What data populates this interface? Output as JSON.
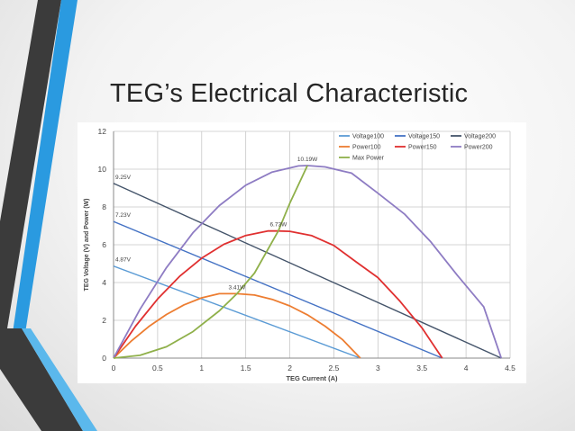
{
  "slide": {
    "title": "TEG’s Electrical Characteristic",
    "accent_colors": {
      "dark_band": "#3b3b3b",
      "blue_band": "#2a9ae0",
      "light_band": "#5bb8ec"
    }
  },
  "chart_data": {
    "type": "line",
    "title": "",
    "xlabel": "TEG Current (A)",
    "ylabel": "TEG Voltage (V) and Power (W)",
    "xlim": [
      0,
      4.5
    ],
    "ylim": [
      0,
      12
    ],
    "xticks": [
      "0",
      "0.5",
      "1",
      "1.5",
      "2",
      "2.5",
      "3",
      "3.5",
      "4",
      "4.5"
    ],
    "yticks": [
      "0",
      "2",
      "4",
      "6",
      "8",
      "10",
      "12"
    ],
    "grid": true,
    "legend_position": "top-right",
    "series": [
      {
        "name": "Voltage100",
        "color": "#5b9bd5",
        "x": [
          0,
          2.8
        ],
        "y": [
          4.87,
          0
        ]
      },
      {
        "name": "Voltage150",
        "color": "#4472c4",
        "x": [
          0,
          3.73
        ],
        "y": [
          7.23,
          0
        ]
      },
      {
        "name": "Voltage200",
        "color": "#44546a",
        "x": [
          0,
          4.4
        ],
        "y": [
          9.25,
          0
        ]
      },
      {
        "name": "Power100",
        "color": "#ed7d31",
        "x": [
          0,
          0.2,
          0.4,
          0.6,
          0.8,
          1.0,
          1.2,
          1.4,
          1.6,
          1.8,
          2.0,
          2.2,
          2.4,
          2.6,
          2.8
        ],
        "y": [
          0,
          0.9,
          1.67,
          2.31,
          2.82,
          3.19,
          3.41,
          3.41,
          3.34,
          3.11,
          2.76,
          2.29,
          1.69,
          0.97,
          0
        ]
      },
      {
        "name": "Power150",
        "color": "#e03030",
        "x": [
          0,
          0.25,
          0.5,
          0.75,
          1.0,
          1.25,
          1.5,
          1.75,
          1.87,
          2.0,
          2.25,
          2.5,
          2.75,
          3.0,
          3.25,
          3.5,
          3.73
        ],
        "y": [
          0,
          1.69,
          3.13,
          4.33,
          5.29,
          6.02,
          6.49,
          6.73,
          6.73,
          6.71,
          6.48,
          5.96,
          5.1,
          4.26,
          3.01,
          1.6,
          0
        ]
      },
      {
        "name": "Power200",
        "color": "#8e7cc3",
        "x": [
          0,
          0.3,
          0.6,
          0.9,
          1.2,
          1.5,
          1.8,
          2.1,
          2.2,
          2.4,
          2.7,
          3.0,
          3.3,
          3.6,
          3.9,
          4.2,
          4.4
        ],
        "y": [
          0,
          2.58,
          4.79,
          6.63,
          8.07,
          9.15,
          9.85,
          10.17,
          10.19,
          10.12,
          9.79,
          8.73,
          7.63,
          6.15,
          4.39,
          2.72,
          0
        ]
      },
      {
        "name": "Max Power",
        "color": "#8fb04a",
        "x": [
          0,
          0.3,
          0.6,
          0.9,
          1.2,
          1.4,
          1.6,
          1.87,
          2.0,
          2.2
        ],
        "y": [
          0,
          0.15,
          0.6,
          1.4,
          2.5,
          3.41,
          4.5,
          6.73,
          8.2,
          10.19
        ]
      }
    ],
    "annotations": [
      {
        "text": "4.87V",
        "x": 0,
        "y": 4.87
      },
      {
        "text": "7.23V",
        "x": 0,
        "y": 7.23
      },
      {
        "text": "9.25V",
        "x": 0,
        "y": 9.25
      },
      {
        "text": "3.41W",
        "x": 1.4,
        "y": 3.41
      },
      {
        "text": "6.73W",
        "x": 1.87,
        "y": 6.73
      },
      {
        "text": "10.19W",
        "x": 2.2,
        "y": 10.19
      }
    ],
    "legend_order": [
      "Voltage100",
      "Voltage150",
      "Voltage200",
      "Power100",
      "Power150",
      "Power200",
      "Max Power"
    ]
  }
}
